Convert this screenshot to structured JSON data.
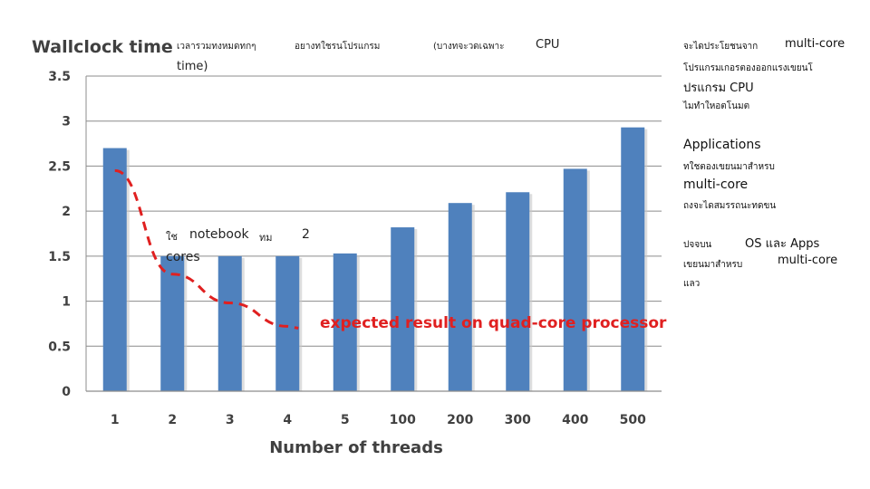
{
  "chart_data": {
    "type": "bar",
    "title": "Wallclock time",
    "xlabel": "Number of threads",
    "ylabel": "",
    "ylim": [
      0,
      3.5
    ],
    "yticks": [
      "0",
      "0.5",
      "1",
      "1.5",
      "2",
      "2.5",
      "3",
      "3.5"
    ],
    "categories": [
      "1",
      "2",
      "3",
      "4",
      "5",
      "100",
      "200",
      "300",
      "400",
      "500"
    ],
    "values": [
      2.7,
      1.5,
      1.5,
      1.5,
      1.53,
      1.82,
      2.09,
      2.21,
      2.47,
      2.93
    ],
    "grid": true,
    "bar_color": "#4f81bd",
    "expected_curve": {
      "label": "expected result on quad-core processor",
      "color": "#e02020",
      "x": [
        "1",
        "2",
        "3",
        "4"
      ],
      "values": [
        2.45,
        1.3,
        0.98,
        0.72
      ]
    }
  },
  "annotations": {
    "title_note_1": "เวลารวมทงหมดทกๆ",
    "title_note_2": "อยางทใชรนโปรแกรม",
    "title_note_3": "(บางทจะวดเฉพาะ",
    "title_note_4": "CPU",
    "title_note_5": "time)",
    "notebook_note_1": "ใช",
    "notebook_note_2": "notebook",
    "notebook_note_3": "ทม",
    "notebook_note_4": "2",
    "notebook_note_5": "cores"
  },
  "sidebar": {
    "line1a": "จะไดประโยชนจาก",
    "line1b": "multi-core",
    "line2": "โปรแกรมเกอรตองออกแรงเขยนโ",
    "line3": "ปรแกรม CPU",
    "line4": "ไมทำใหอตโนมต",
    "line5": "Applications",
    "line6": "ทใชตองเขยนมาสำหรบ",
    "line7": "multi-core",
    "line8": "ถงจะไดสมรรถนะทดขน",
    "line9a": "ปจจบน",
    "line9b": "OS และ Apps",
    "line10a": "เขยนมาสำหรบ",
    "line10b": "multi-core",
    "line11": "แลว"
  }
}
